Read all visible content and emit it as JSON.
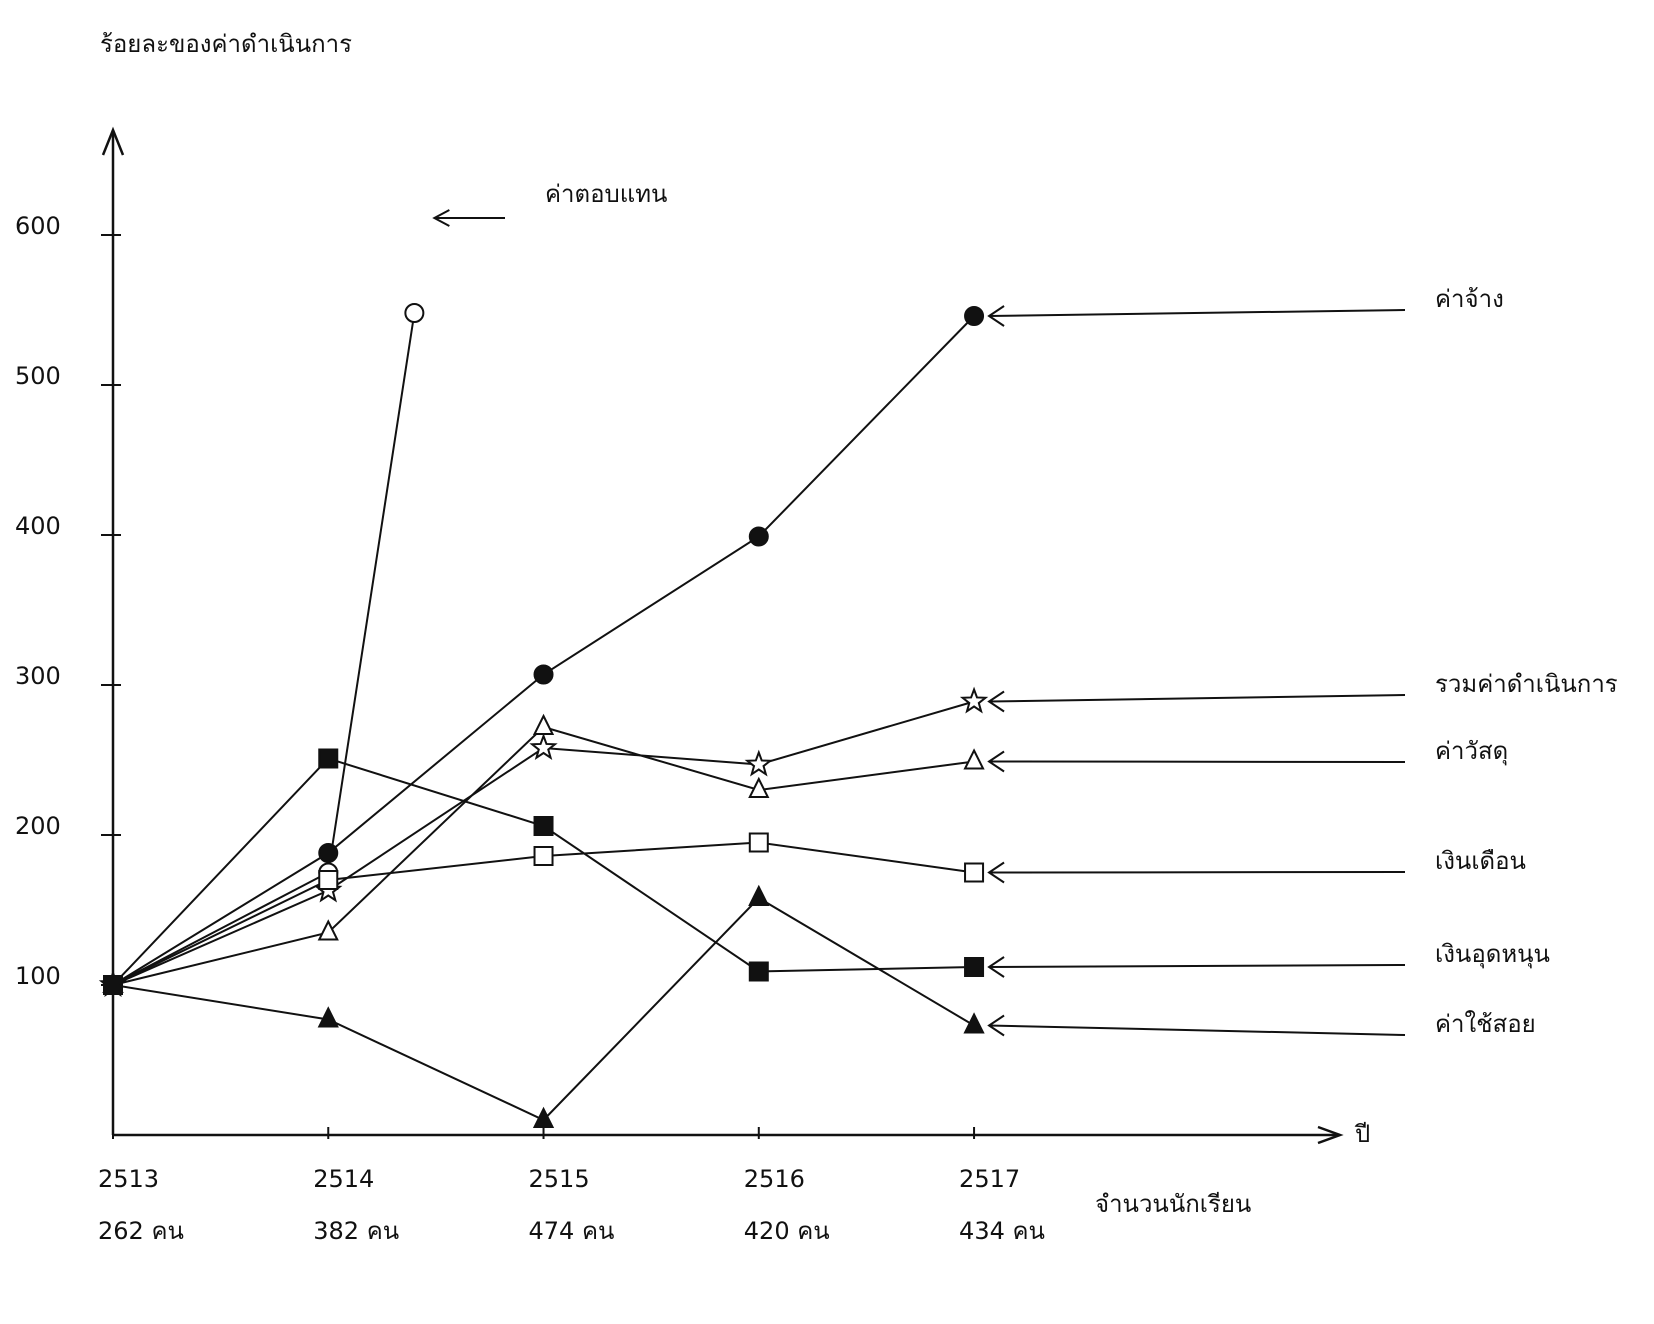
{
  "chart_data": {
    "type": "line",
    "title": "ร้อยละของค่าดำเนินการ",
    "x_label": "ปี",
    "x": [
      2513,
      2514,
      2515,
      2516,
      2517
    ],
    "xticks": [
      2513,
      2514,
      2515,
      2516,
      2517
    ],
    "xlim": [
      2513,
      2518.7
    ],
    "students_label": "จำนวนนักเรียน",
    "students": [
      "262 คน",
      "382 คน",
      "474 คน",
      "420 คน",
      "434 คน"
    ],
    "ylim": [
      0,
      670
    ],
    "yticks": [
      100,
      200,
      300,
      400,
      500,
      600
    ],
    "grid": false,
    "series": [
      {
        "name": "ค่าตอบแทน",
        "color": "#111",
        "marker": "open-circle",
        "x": [
          2513,
          2514,
          2514.4
        ],
        "values": [
          100,
          175,
          548
        ]
      },
      {
        "name": "ค่าจ้าง",
        "color": "#111",
        "marker": "filled-circle",
        "values": [
          100,
          188,
          307,
          399,
          546
        ]
      },
      {
        "name": "รวมค่าดำเนินการ",
        "color": "#111",
        "marker": "star",
        "values": [
          100,
          163,
          258,
          247,
          289
        ]
      },
      {
        "name": "ค่าวัสดุ",
        "color": "#111",
        "marker": "open-triangle",
        "values": [
          100,
          135,
          272,
          230,
          249
        ]
      },
      {
        "name": "เงินเดือน",
        "color": "#111",
        "marker": "open-square",
        "values": [
          100,
          170,
          186,
          195,
          175
        ]
      },
      {
        "name": "เงินอุดหนุน",
        "color": "#111",
        "marker": "filled-square",
        "values": [
          100,
          251,
          206,
          109,
          112
        ]
      },
      {
        "name": "ค่าใช้สอย",
        "color": "#111",
        "marker": "filled-triangle",
        "values": [
          100,
          77,
          10,
          158,
          73
        ]
      }
    ]
  }
}
